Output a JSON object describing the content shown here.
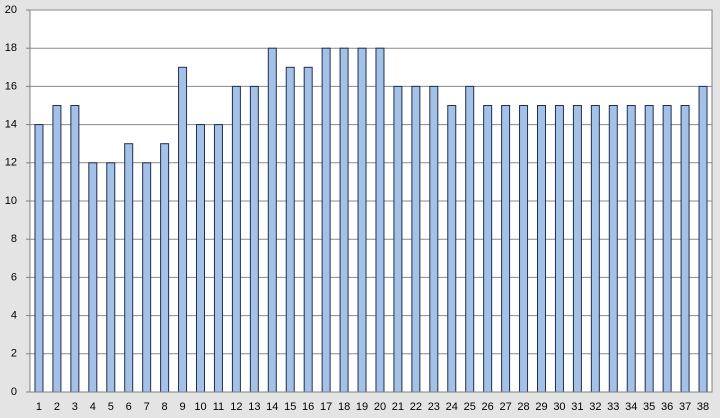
{
  "chart_data": {
    "type": "bar",
    "categories": [
      "1",
      "2",
      "3",
      "4",
      "5",
      "6",
      "7",
      "8",
      "9",
      "10",
      "11",
      "12",
      "13",
      "14",
      "15",
      "16",
      "17",
      "18",
      "19",
      "20",
      "21",
      "22",
      "23",
      "24",
      "25",
      "26",
      "27",
      "28",
      "29",
      "30",
      "31",
      "32",
      "33",
      "34",
      "35",
      "36",
      "37",
      "38"
    ],
    "values": [
      14,
      15,
      15,
      12,
      12,
      13,
      12,
      13,
      17,
      14,
      14,
      16,
      16,
      18,
      17,
      17,
      18,
      18,
      18,
      18,
      16,
      16,
      16,
      15,
      16,
      15,
      15,
      15,
      15,
      15,
      15,
      15,
      15,
      15,
      15,
      15,
      15,
      16
    ],
    "color": "#a4c2e8",
    "ylim": [
      0,
      20
    ],
    "yticks": [
      0,
      2,
      4,
      6,
      8,
      10,
      12,
      14,
      16,
      18,
      20
    ],
    "grid": true
  }
}
